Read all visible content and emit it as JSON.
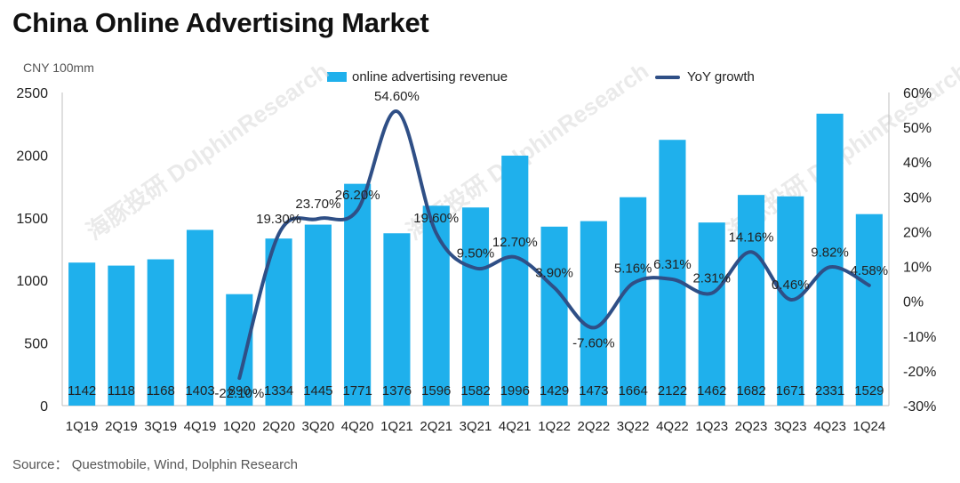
{
  "title": "China Online Advertising Market",
  "unit_label": "CNY 100mm",
  "source": "Source： Questmobile, Wind, Dolphin Research",
  "watermarks": [
    "海豚投研 DolphinResearch",
    "海豚投研 DolphinResearch",
    "海豚投研 DolphinResearch"
  ],
  "colors": {
    "bar": "#1fb0ec",
    "line": "#2f4f86",
    "axis": "#bfbfbf"
  },
  "chart_data": {
    "type": "bar+line",
    "categories": [
      "1Q19",
      "2Q19",
      "3Q19",
      "4Q19",
      "1Q20",
      "2Q20",
      "3Q20",
      "4Q20",
      "1Q21",
      "2Q21",
      "3Q21",
      "4Q21",
      "1Q22",
      "2Q22",
      "3Q22",
      "4Q22",
      "1Q23",
      "2Q23",
      "3Q23",
      "4Q23",
      "1Q24"
    ],
    "series": [
      {
        "name": "online advertising revenue",
        "kind": "bar",
        "axis": "left",
        "values": [
          1142,
          1118,
          1168,
          1403,
          890,
          1334,
          1445,
          1771,
          1376,
          1596,
          1582,
          1996,
          1429,
          1473,
          1664,
          2122,
          1462,
          1682,
          1671,
          2331,
          1529
        ],
        "labels": [
          "1142",
          "1118",
          "1168",
          "1403",
          "890",
          "1334",
          "1445",
          "1771",
          "1376",
          "1596",
          "1582",
          "1996",
          "1429",
          "1473",
          "1664",
          "2122",
          "1462",
          "1682",
          "1671",
          "2331",
          "1529"
        ]
      },
      {
        "name": "YoY growth",
        "kind": "line",
        "axis": "right",
        "values": [
          null,
          null,
          null,
          null,
          -22.1,
          19.3,
          23.7,
          26.2,
          54.6,
          19.6,
          9.5,
          12.7,
          3.9,
          -7.6,
          5.16,
          6.31,
          2.31,
          14.16,
          0.46,
          9.82,
          4.58
        ],
        "labels": [
          null,
          null,
          null,
          null,
          "-22.10%",
          "19.30%",
          "23.70%",
          "26.20%",
          "54.60%",
          "19.60%",
          "9.50%",
          "12.70%",
          "3.90%",
          "-7.60%",
          "5.16%",
          "6.31%",
          "2.31%",
          "14.16%",
          "0.46%",
          "9.82%",
          "4.58%"
        ]
      }
    ],
    "y_left": {
      "min": 0,
      "max": 2500,
      "ticks": [
        "0",
        "500",
        "1000",
        "1500",
        "2000",
        "2500"
      ]
    },
    "y_right": {
      "min": -30,
      "max": 60,
      "ticks": [
        "-30%",
        "-20%",
        "-10%",
        "0%",
        "10%",
        "20%",
        "30%",
        "40%",
        "50%",
        "60%"
      ]
    },
    "grid": false,
    "legend_position": "top"
  }
}
